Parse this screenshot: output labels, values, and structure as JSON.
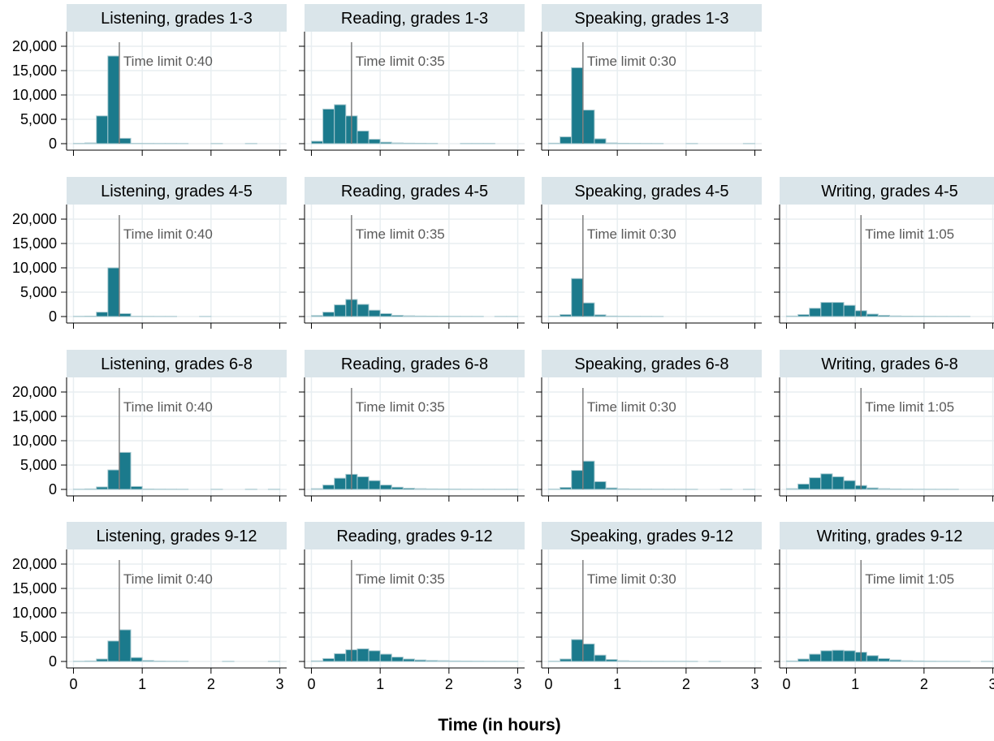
{
  "chart_data": {
    "type": "bar",
    "xlabel": "Time (in hours)",
    "ylabel": "",
    "xlim": [
      -0.1,
      3.1
    ],
    "ylim": [
      0,
      22000
    ],
    "x_ticks": [
      0,
      1,
      2,
      3
    ],
    "x_tick_labels": [
      "0",
      "1",
      "2",
      "3"
    ],
    "y_ticks": [
      0,
      5000,
      10000,
      15000,
      20000
    ],
    "y_tick_labels": [
      "0",
      "5,000",
      "10,000",
      "15,000",
      "20,000"
    ],
    "grid": true,
    "bin_width": 0.1667,
    "bin_starts": [
      0,
      0.1667,
      0.3333,
      0.5,
      0.6667,
      0.8333,
      1,
      1.1667,
      1.3333,
      1.5,
      1.6667,
      1.8333,
      2,
      2.1667,
      2.3333,
      2.5,
      2.6667,
      2.8333
    ],
    "rows": [
      "grades 1-3",
      "grades 4-5",
      "grades 6-8",
      "grades 9-12"
    ],
    "columns": [
      "Listening",
      "Reading",
      "Speaking",
      "Writing"
    ],
    "panels": [
      {
        "title": "Listening, grades 1-3",
        "row": 0,
        "col": 0,
        "limit": 0.6667,
        "limit_label": "Time limit 0:40",
        "values": [
          50,
          150,
          5700,
          18000,
          1100,
          60,
          50,
          40,
          40,
          30,
          0,
          0,
          25,
          0,
          0,
          25,
          0,
          0
        ]
      },
      {
        "title": "Reading, grades 1-3",
        "row": 0,
        "col": 1,
        "limit": 0.5833,
        "limit_label": "Time limit 0:35",
        "values": [
          500,
          7100,
          8000,
          5700,
          2600,
          900,
          300,
          150,
          100,
          80,
          60,
          0,
          0,
          40,
          40,
          40,
          0,
          0
        ]
      },
      {
        "title": "Speaking, grades 1-3",
        "row": 0,
        "col": 2,
        "limit": 0.5,
        "limit_label": "Time limit 0:30",
        "values": [
          100,
          1400,
          15600,
          6900,
          1000,
          150,
          80,
          60,
          40,
          30,
          0,
          0,
          25,
          0,
          0,
          0,
          0,
          20
        ]
      },
      {
        "title": "Listening, grades 4-5",
        "row": 1,
        "col": 0,
        "limit": 0.6667,
        "limit_label": "Time limit 0:40",
        "values": [
          40,
          80,
          900,
          10000,
          600,
          50,
          30,
          20,
          20,
          0,
          0,
          15,
          0,
          0,
          0,
          0,
          0,
          0
        ]
      },
      {
        "title": "Reading, grades 4-5",
        "row": 1,
        "col": 1,
        "limit": 0.5833,
        "limit_label": "Time limit 0:35",
        "values": [
          200,
          900,
          2400,
          3500,
          2500,
          1300,
          600,
          250,
          150,
          100,
          80,
          60,
          40,
          30,
          25,
          0,
          20,
          20
        ]
      },
      {
        "title": "Speaking, grades 4-5",
        "row": 1,
        "col": 2,
        "limit": 0.5,
        "limit_label": "Time limit 0:30",
        "values": [
          60,
          400,
          7800,
          2800,
          350,
          100,
          60,
          40,
          30,
          20,
          0,
          0,
          0,
          0,
          0,
          0,
          0,
          0
        ]
      },
      {
        "title": "Writing, grades 4-5",
        "row": 1,
        "col": 3,
        "limit": 1.0833,
        "limit_label": "Time limit 1:05",
        "values": [
          100,
          400,
          1700,
          2900,
          2900,
          2300,
          1200,
          500,
          250,
          120,
          80,
          60,
          40,
          30,
          25,
          20,
          0,
          0
        ]
      },
      {
        "title": "Listening, grades 6-8",
        "row": 2,
        "col": 0,
        "limit": 0.6667,
        "limit_label": "Time limit 0:40",
        "values": [
          40,
          100,
          500,
          4000,
          7600,
          600,
          80,
          50,
          40,
          30,
          0,
          0,
          25,
          0,
          0,
          25,
          0,
          25
        ]
      },
      {
        "title": "Reading, grades 6-8",
        "row": 2,
        "col": 1,
        "limit": 0.5833,
        "limit_label": "Time limit 0:35",
        "values": [
          150,
          900,
          2300,
          3100,
          2600,
          1800,
          900,
          450,
          250,
          150,
          100,
          80,
          60,
          40,
          30,
          25,
          20,
          20
        ]
      },
      {
        "title": "Speaking, grades 6-8",
        "row": 2,
        "col": 2,
        "limit": 0.5,
        "limit_label": "Time limit 0:30",
        "values": [
          60,
          400,
          3900,
          5800,
          1600,
          300,
          120,
          80,
          60,
          40,
          30,
          25,
          20,
          0,
          0,
          20,
          0,
          20
        ]
      },
      {
        "title": "Writing, grades 6-8",
        "row": 2,
        "col": 3,
        "limit": 1.0833,
        "limit_label": "Time limit 1:05",
        "values": [
          150,
          1100,
          2400,
          3200,
          2600,
          1800,
          800,
          300,
          150,
          90,
          60,
          40,
          30,
          25,
          20,
          0,
          0,
          0
        ]
      },
      {
        "title": "Listening, grades 9-12",
        "row": 3,
        "col": 0,
        "limit": 0.6667,
        "limit_label": "Time limit 0:40",
        "values": [
          40,
          100,
          500,
          4200,
          6500,
          800,
          200,
          80,
          50,
          40,
          0,
          0,
          0,
          25,
          0,
          0,
          0,
          25
        ]
      },
      {
        "title": "Reading, grades 9-12",
        "row": 3,
        "col": 1,
        "limit": 0.5833,
        "limit_label": "Time limit 0:35",
        "values": [
          120,
          600,
          1600,
          2400,
          2600,
          2200,
          1500,
          900,
          500,
          300,
          200,
          150,
          100,
          80,
          60,
          40,
          30,
          25
        ]
      },
      {
        "title": "Speaking, grades 9-12",
        "row": 3,
        "col": 2,
        "limit": 0.5,
        "limit_label": "Time limit 0:30",
        "values": [
          60,
          500,
          4500,
          3600,
          1300,
          400,
          150,
          80,
          50,
          40,
          30,
          25,
          20,
          0,
          20,
          0,
          0,
          0
        ]
      },
      {
        "title": "Writing, grades 9-12",
        "row": 3,
        "col": 3,
        "limit": 1.0833,
        "limit_label": "Time limit 1:05",
        "values": [
          100,
          500,
          1500,
          2200,
          2300,
          2200,
          1900,
          1200,
          600,
          300,
          150,
          100,
          60,
          40,
          30,
          25,
          0,
          20
        ]
      }
    ]
  },
  "colors": {
    "bar_fill": "#1B7A8C",
    "bar_stroke": "#A9C9D0",
    "strip_fill": "#DAE5EA",
    "grid": "#E8EEF1",
    "limit_line": "#7F7F7F",
    "limit_text": "#5A5A5A",
    "axis": "#000000"
  }
}
